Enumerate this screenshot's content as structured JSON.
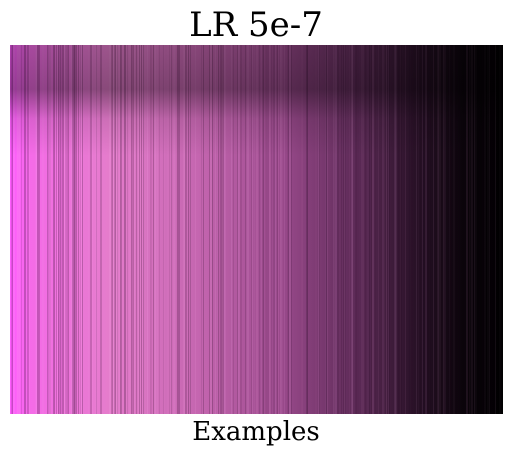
{
  "chart_data": {
    "type": "heatmap",
    "title": "LR 5e-7",
    "xlabel": "Examples",
    "ylabel": "",
    "colormap": "spring-magenta to black",
    "colors": {
      "low": "#000000",
      "mid": "#a24d9a",
      "high": "#ff5cff",
      "peak": "#f07ad6"
    },
    "grid": false,
    "legend": "none"
  }
}
